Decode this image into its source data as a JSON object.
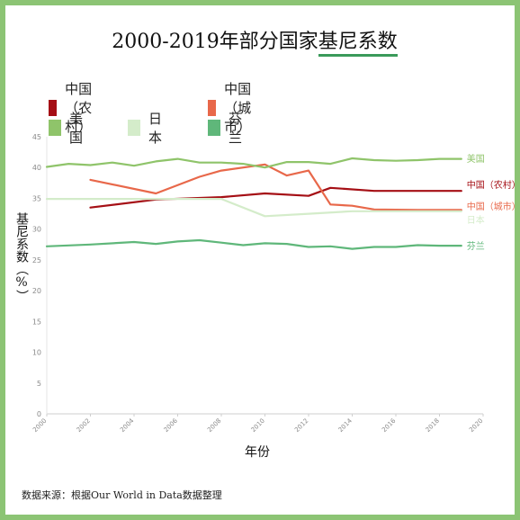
{
  "title_main": "2000-2019年部分国家",
  "title_highlight": "基尼系数",
  "legend": [
    {
      "label": "中国（农村）",
      "color": "#a50f15"
    },
    {
      "label": "中国（城市）",
      "color": "#e8684a"
    },
    {
      "label": "美国",
      "color": "#8fc46a"
    },
    {
      "label": "日本",
      "color": "#d4ecca"
    },
    {
      "label": "芬兰",
      "color": "#5fb77a"
    }
  ],
  "ylabel": "基尼系数（%）",
  "xlabel": "年份",
  "source": "数据来源：根据Our World in Data数据整理",
  "chart_data": {
    "type": "line",
    "title": "2000-2019年部分国家基尼系数",
    "xlabel": "年份",
    "ylabel": "基尼系数（%）",
    "xlim": [
      2000,
      2020
    ],
    "ylim": [
      0,
      45
    ],
    "xticks": [
      2000,
      2002,
      2004,
      2006,
      2008,
      2010,
      2012,
      2014,
      2016,
      2018,
      2020
    ],
    "yticks": [
      0,
      5,
      10,
      15,
      20,
      25,
      30,
      35,
      40,
      45
    ],
    "grid": false,
    "legend_position": "top",
    "series": [
      {
        "name": "中国（农村）",
        "color": "#a50f15",
        "x": [
          2002,
          2005,
          2008,
          2010,
          2012,
          2013,
          2015,
          2017,
          2019
        ],
        "y": [
          33.5,
          34.8,
          35.2,
          35.8,
          35.4,
          36.7,
          36.2,
          36.2,
          36.2
        ]
      },
      {
        "name": "中国（城市）",
        "color": "#e8684a",
        "x": [
          2002,
          2005,
          2007,
          2008,
          2010,
          2011,
          2012,
          2013,
          2014,
          2015,
          2017,
          2019
        ],
        "y": [
          38.0,
          35.8,
          38.5,
          39.5,
          40.5,
          38.7,
          39.5,
          34.0,
          33.8,
          33.2,
          33.1,
          33.1
        ]
      },
      {
        "name": "美国",
        "color": "#8fc46a",
        "x": [
          2000,
          2001,
          2002,
          2003,
          2004,
          2005,
          2006,
          2007,
          2008,
          2009,
          2010,
          2011,
          2012,
          2013,
          2014,
          2015,
          2016,
          2017,
          2018,
          2019
        ],
        "y": [
          40.1,
          40.6,
          40.4,
          40.8,
          40.3,
          41.0,
          41.4,
          40.8,
          40.8,
          40.6,
          40.0,
          40.9,
          40.9,
          40.6,
          41.5,
          41.2,
          41.1,
          41.2,
          41.4,
          41.4
        ]
      },
      {
        "name": "日本",
        "color": "#d4ecca",
        "x": [
          2000,
          2002,
          2004,
          2006,
          2008,
          2010,
          2012,
          2014,
          2016,
          2019
        ],
        "y": [
          34.9,
          34.9,
          34.9,
          34.9,
          34.9,
          32.1,
          32.5,
          32.9,
          32.9,
          32.9
        ]
      },
      {
        "name": "芬兰",
        "color": "#5fb77a",
        "x": [
          2000,
          2002,
          2004,
          2005,
          2006,
          2007,
          2008,
          2009,
          2010,
          2011,
          2012,
          2013,
          2014,
          2015,
          2016,
          2017,
          2018,
          2019
        ],
        "y": [
          27.2,
          27.5,
          27.9,
          27.6,
          28.0,
          28.2,
          27.8,
          27.4,
          27.7,
          27.6,
          27.1,
          27.2,
          26.8,
          27.1,
          27.1,
          27.4,
          27.3,
          27.3
        ]
      }
    ]
  }
}
